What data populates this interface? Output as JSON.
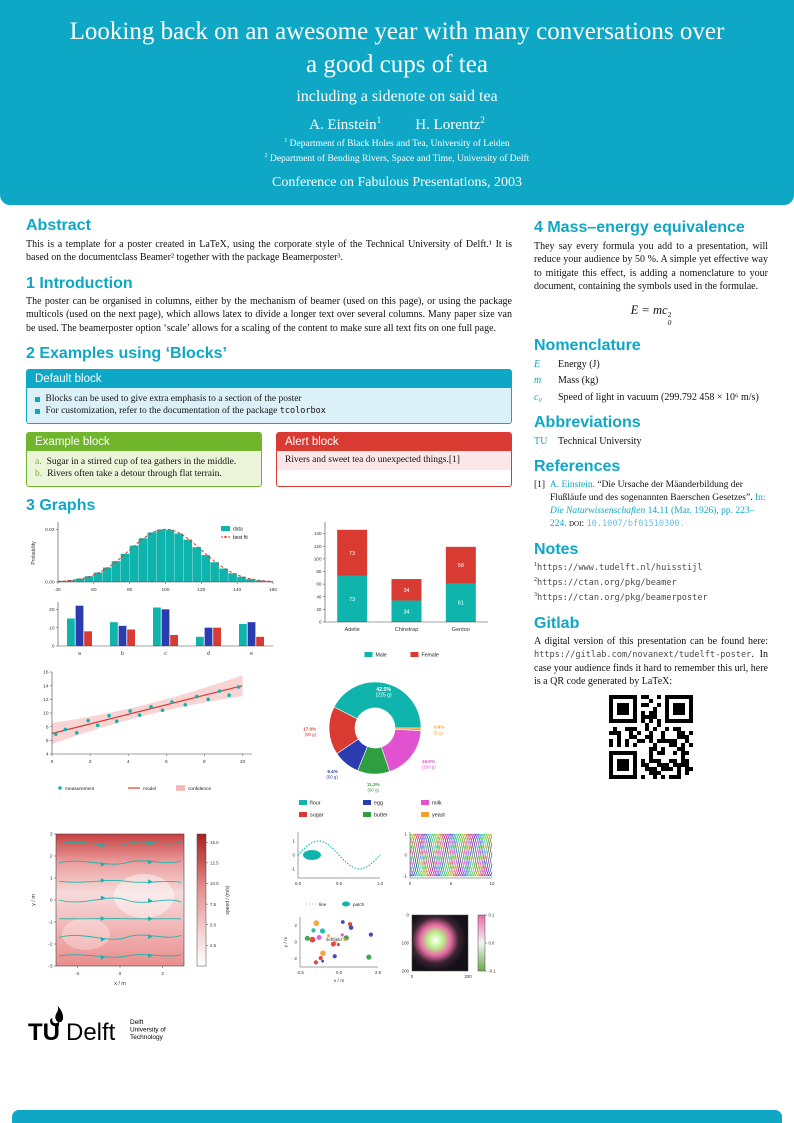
{
  "palette": {
    "brand": "#0ea7c6",
    "teal": "#0fb5ac",
    "red": "#d93a32",
    "blue": "#2a3cb0",
    "green": "#2f9e41",
    "magenta": "#e052cf",
    "orange": "#f0a12f",
    "band": "#f5b8b8"
  },
  "header": {
    "title": "Looking back on an awesome year with many conversations over a good cups of tea",
    "subtitle": "including a sidenote on said tea",
    "authors": [
      {
        "name": "A. Einstein",
        "sup": "1"
      },
      {
        "name": "H. Lorentz",
        "sup": "2"
      }
    ],
    "affiliations": [
      {
        "sup": "1",
        "text": "Department of Black Holes and Tea, University of Leiden"
      },
      {
        "sup": "2",
        "text": "Department of Bending Rivers, Space and Time, University of Delft"
      }
    ],
    "conference": "Conference on Fabulous Presentations, 2003"
  },
  "abstract": {
    "heading": "Abstract",
    "text": "This is a template for a poster created in LaTeX, using the corporate style of the Technical University of Delft.¹ It is based on the documentclass Beamer² together with the package Beamerposter³."
  },
  "introduction": {
    "heading": "1 Introduction",
    "text": "The poster can be organised in columns, either by the mechanism of beamer (used on this page), or using the package multicols (used on the next page), which allows latex to divide a longer text over several columns. Many paper size van be used. The beamerposter option ‘scale’ allows for a scaling of the content to make sure all text fits on one full page."
  },
  "blocks": {
    "heading": "2 Examples using ‘Blocks’",
    "default_block": {
      "title": "Default block",
      "item1": "Blocks can be used to give extra emphasis to a section of the poster",
      "item2_text": "For customization, refer to the documentation of the package ",
      "item2_code": "tcolorbox"
    },
    "example_block": {
      "title": "Example block",
      "items": [
        {
          "label": "a.",
          "text": "Sugar in a stirred cup of tea gathers in the middle."
        },
        {
          "label": "b.",
          "text": "Rivers often take a detour through flat terrain."
        }
      ]
    },
    "alert_block": {
      "title": "Alert block",
      "text": "Rivers and sweet tea do unexpected things.[1]"
    }
  },
  "graphs": {
    "heading": "3 Graphs"
  },
  "chart_data": [
    {
      "id": "histogram",
      "type": "bar",
      "ylabel": "Probability",
      "x_ticks": [
        40,
        60,
        80,
        100,
        120,
        140,
        160
      ],
      "y_ticks": [
        "0.00",
        "0.02"
      ],
      "bin_start": 40,
      "bin_width": 5,
      "values": [
        0.0004,
        0.0007,
        0.0013,
        0.0022,
        0.0036,
        0.0055,
        0.0079,
        0.0107,
        0.0138,
        0.0166,
        0.0188,
        0.0199,
        0.0198,
        0.0184,
        0.0161,
        0.0132,
        0.0102,
        0.0075,
        0.0051,
        0.0033,
        0.002,
        0.0011,
        0.0006,
        0.0003
      ],
      "fit": {
        "mean": 100,
        "sigma": 20,
        "peak": 0.02
      },
      "legend": [
        "data",
        "best fit"
      ]
    },
    {
      "id": "grouped-bars",
      "type": "bar",
      "categories": [
        "a",
        "b",
        "c",
        "d",
        "e"
      ],
      "series": [
        {
          "color": "teal",
          "values": [
            15,
            13,
            21,
            5,
            12
          ]
        },
        {
          "color": "blue",
          "values": [
            22,
            11,
            20,
            10,
            13
          ]
        },
        {
          "color": "red",
          "values": [
            8,
            9,
            6,
            10,
            5
          ]
        }
      ],
      "y_ticks": [
        0,
        10,
        20
      ]
    },
    {
      "id": "penguin-stacked",
      "type": "bar",
      "categories": [
        "Adelie",
        "Chinstrap",
        "Gentoo"
      ],
      "series": [
        {
          "name": "Male",
          "color": "teal",
          "values": [
            73,
            34,
            61
          ]
        },
        {
          "name": "Female",
          "color": "red",
          "values": [
            73,
            34,
            58
          ]
        }
      ],
      "y_ticks": [
        0,
        20,
        40,
        60,
        80,
        100,
        120,
        140
      ]
    },
    {
      "id": "regression",
      "type": "scatter",
      "points_x": [
        0.2,
        0.7,
        1.3,
        1.9,
        2.4,
        3.0,
        3.4,
        4.1,
        4.6,
        5.2,
        5.8,
        6.3,
        7.0,
        7.6,
        8.2,
        8.8,
        9.3,
        9.8
      ],
      "points_y": [
        6.9,
        7.6,
        7.1,
        8.9,
        8.2,
        9.6,
        8.8,
        10.3,
        9.7,
        10.9,
        10.4,
        11.6,
        11.2,
        12.4,
        12.0,
        13.2,
        12.6,
        13.8
      ],
      "model": {
        "intercept": 7.0,
        "slope": 0.7
      },
      "x_ticks": [
        0,
        2,
        4,
        6,
        8,
        10
      ],
      "y_ticks": [
        4,
        6,
        8,
        10,
        12,
        14,
        16
      ],
      "legend": [
        "measurement",
        "model",
        "confidence"
      ]
    },
    {
      "id": "ingredients",
      "type": "pie",
      "donut": true,
      "labels": [
        "flour",
        "sugar",
        "egg",
        "butter",
        "milk",
        "yeast"
      ],
      "grams": [
        225,
        90,
        50,
        60,
        100,
        5
      ],
      "percents": [
        "42.5%",
        "17.0%",
        "9.4%",
        "11.3%",
        "18.9%",
        "0.9%"
      ],
      "colors": [
        "teal",
        "red",
        "blue",
        "green",
        "magenta",
        "orange"
      ]
    },
    {
      "id": "streamplot",
      "type": "heatmap",
      "xlabel": "x / m",
      "ylabel": "y / m",
      "x_ticks": [
        -2,
        0,
        2
      ],
      "y_ticks": [
        3,
        2,
        1,
        0,
        -1,
        -2,
        -3
      ],
      "colorbar": {
        "label": "speed / (m/s)",
        "ticks": [
          "2.5",
          "5.0",
          "7.5",
          "10.0",
          "12.5",
          "15.0"
        ]
      }
    },
    {
      "id": "line-patch",
      "type": "line",
      "x_ticks": [
        "0.0",
        "0.5",
        "1.0"
      ],
      "y_ticks": [
        1,
        0,
        -1
      ],
      "legend": [
        "line",
        "patch"
      ]
    },
    {
      "id": "phase-lines",
      "type": "line",
      "x_ticks": [
        0,
        5,
        10
      ],
      "y_ticks": [
        1,
        0,
        -1
      ],
      "n_lines": 12
    },
    {
      "id": "random-scatter",
      "type": "scatter",
      "xlabel": "x / m",
      "ylabel": "y / m",
      "x_ticks": [
        "-2.5",
        "0.0",
        "2.5"
      ],
      "y_ticks": [
        2,
        0,
        -2
      ],
      "annotation": "\\leftfield",
      "n_points": 24
    },
    {
      "id": "field-image",
      "type": "heatmap",
      "x_ticks": [
        0,
        200
      ],
      "y_ticks": [
        0,
        100,
        200
      ],
      "colorbar": {
        "ticks": [
          "0.1",
          "0.0",
          "-0.1"
        ]
      }
    }
  ],
  "right": {
    "mass_energy": {
      "heading": "4 Mass–energy equivalence",
      "text": "They say every formula you add to a presentation, will reduce your audience by 50 %. A simple yet effective way to mitigate this effect, is adding a nomenclature to your document, containing the symbols used in the formulae.",
      "eq_base": "E = mc",
      "eq_sup": "2",
      "eq_sub": "0"
    },
    "nomenclature": {
      "heading": "Nomenclature",
      "entries": [
        {
          "symbol": "E",
          "desc": "Energy (J)"
        },
        {
          "symbol": "m",
          "desc": "Mass (kg)"
        },
        {
          "symbol": "c₀",
          "desc": "Speed of light in vacuum (299.792 458 × 10⁶ m/s)"
        }
      ]
    },
    "abbreviations": {
      "heading": "Abbreviations",
      "entries": [
        {
          "abbr": "TU",
          "desc": "Technical University"
        }
      ]
    },
    "references": {
      "heading": "References",
      "items": [
        {
          "num": "[1]",
          "authors": "A. Einstein.",
          "title": "“Die Ursache der Mäanderbildung der Flußläufe und des sogenannten Baerschen Gesetzes”.",
          "in_label": "In:",
          "journal": "Die Naturwissenschaften",
          "detail": "14.11 (Mar. 1926), pp. 223–224.",
          "doi_label": "doi:",
          "doi": "10.1007/bf01510300."
        }
      ]
    },
    "notes": {
      "heading": "Notes",
      "items": [
        {
          "sup": "1",
          "url": "https://www.tudelft.nl/huisstijl"
        },
        {
          "sup": "2",
          "url": "https://ctan.org/pkg/beamer"
        },
        {
          "sup": "3",
          "url": "https://ctan.org/pkg/beamerposter"
        }
      ]
    },
    "gitlab": {
      "heading": "Gitlab",
      "text_pre": "A digital version of this presentation can be found here: ",
      "url": "https://gitlab.com/novanext/tudelft-poster",
      "text_post": ". In case your audience finds it hard to remember this url, here is a QR code generated by LaTeX:"
    }
  },
  "logo": {
    "tu": "TU",
    "delft": "Delft",
    "sub1": "Delft",
    "sub2": "University of",
    "sub3": "Technology"
  }
}
